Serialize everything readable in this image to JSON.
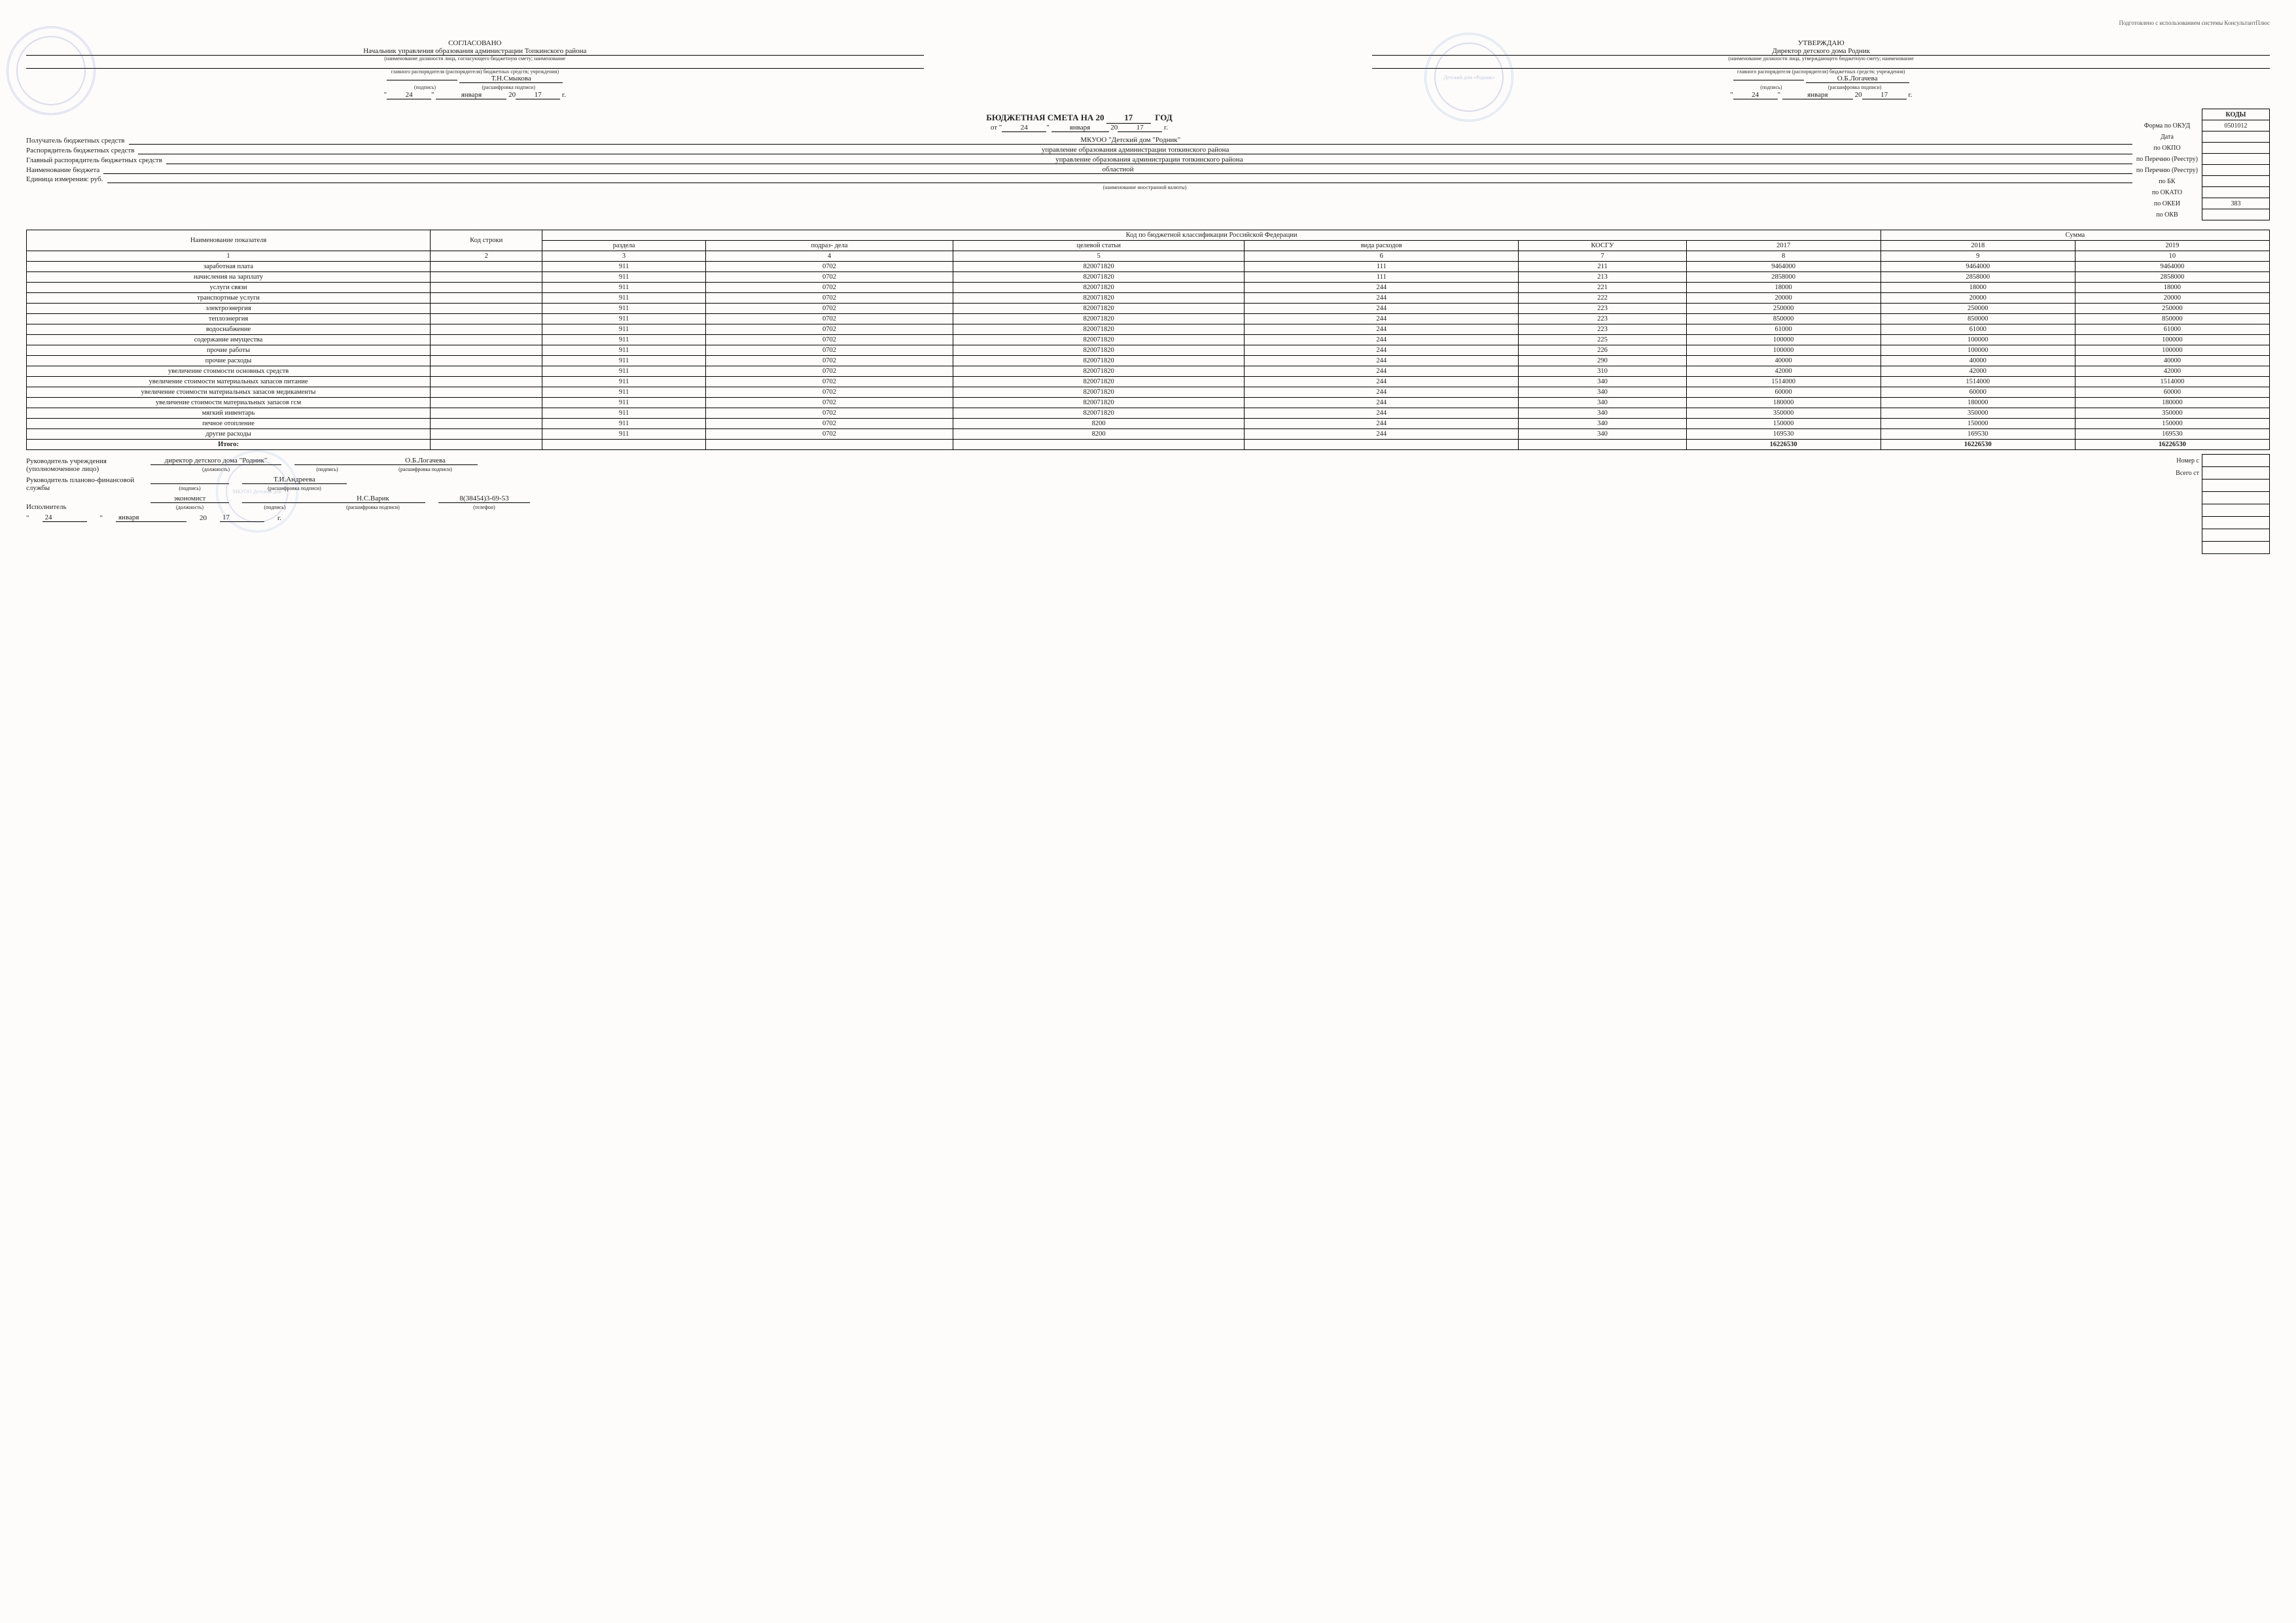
{
  "top_note": "Подготовлено с использованием системы КонсультантПлюс",
  "approval": {
    "left": {
      "heading": "СОГЛАСОВАНО",
      "position_line": "Начальник управления образования администрации Топкинского района",
      "position_caption": "(наименование должности лица, согласующего бюджетную смету; наименование",
      "org_caption": "главного распорядителя (распорядителя) бюджетных средств; учреждения)",
      "name": "Т.Н.Смыкова",
      "name_caption": "(расшифровка подписи)",
      "sig_caption": "(подпись)",
      "day": "24",
      "month": "января",
      "yy": "17",
      "year_prefix": "20",
      "year_suffix": "г."
    },
    "right": {
      "heading": "УТВЕРЖДАЮ",
      "position_line": "Директор детского дома Родник",
      "position_caption": "(наименование должности лица, утверждающего бюджетную смету; наименование",
      "org_caption": "главного распорядителя (распорядителя) бюджетных средств; учреждения)",
      "name": "О.Б.Логачева",
      "name_caption": "(расшифровка подписи)",
      "sig_caption": "(подпись)",
      "day": "24",
      "month": "января",
      "yy": "17",
      "year_prefix": "20",
      "year_suffix": "г.",
      "stamp_text": "Детский дом «Родник»"
    }
  },
  "title": {
    "main": "БЮДЖЕТНАЯ СМЕТА НА 20",
    "yy": "17",
    "suffix": "ГОД",
    "from": "от \"",
    "day": "24",
    "quote": "\"",
    "month": "января",
    "yp": "20",
    "yy2": "17",
    "ys": "г."
  },
  "codes": {
    "header": "КОДЫ",
    "rows": [
      {
        "label": "Форма по ОКУД",
        "value": "0501012"
      },
      {
        "label": "Дата",
        "value": ""
      },
      {
        "label": "по ОКПО",
        "value": ""
      },
      {
        "label": "по Перечню (Реестру)",
        "value": ""
      },
      {
        "label": "по Перечню (Реестру)",
        "value": ""
      },
      {
        "label": "по БК",
        "value": ""
      },
      {
        "label": "по ОКАТО",
        "value": ""
      },
      {
        "label": "по ОКЕИ",
        "value": "383"
      },
      {
        "label": "по ОКВ",
        "value": ""
      }
    ]
  },
  "info": {
    "rows": [
      {
        "label": "Получатель бюджетных средств",
        "value": "МКУОО \"Детский дом \"Родник\""
      },
      {
        "label": "Распорядитель бюджетных средств",
        "value": "управление образования администрации топкинского района"
      },
      {
        "label": "Главный распорядитель бюджетных средств",
        "value": "управление образования администрации топкинского района"
      },
      {
        "label": "Наименование бюджета",
        "value": "областной"
      },
      {
        "label": "Единица измерения: руб.",
        "value": ""
      }
    ],
    "currency_caption": "(наименование иностранной валюты)"
  },
  "table": {
    "headers": {
      "h1": "Наименование показателя",
      "h2": "Код строки",
      "h3": "Код по бюджетной классификации Российской Федерации",
      "h4": "Сумма",
      "sub": [
        "раздела",
        "подраз-\nдела",
        "целевой статьи",
        "вида расходов",
        "КОСГУ",
        "2017",
        "2018",
        "2019"
      ],
      "nums": [
        "1",
        "2",
        "3",
        "4",
        "5",
        "6",
        "7",
        "8",
        "9",
        "10"
      ]
    },
    "rows": [
      {
        "c": [
          "заработная плата",
          "",
          "911",
          "0702",
          "820071820",
          "111",
          "211",
          "9464000",
          "9464000",
          "9464000"
        ]
      },
      {
        "c": [
          "начисления на зарплату",
          "",
          "911",
          "0702",
          "820071820",
          "111",
          "213",
          "2858000",
          "2858000",
          "2858000"
        ]
      },
      {
        "c": [
          "услуги связи",
          "",
          "911",
          "0702",
          "820071820",
          "244",
          "221",
          "18000",
          "18000",
          "18000"
        ]
      },
      {
        "c": [
          "транспортные услуги",
          "",
          "911",
          "0702",
          "820071820",
          "244",
          "222",
          "20000",
          "20000",
          "20000"
        ]
      },
      {
        "c": [
          "электроэнергия",
          "",
          "911",
          "0702",
          "820071820",
          "244",
          "223",
          "250000",
          "250000",
          "250000"
        ]
      },
      {
        "c": [
          "теплоэнергия",
          "",
          "911",
          "0702",
          "820071820",
          "244",
          "223",
          "850000",
          "850000",
          "850000"
        ]
      },
      {
        "c": [
          "водоснабжение",
          "",
          "911",
          "0702",
          "820071820",
          "244",
          "223",
          "61000",
          "61000",
          "61000"
        ]
      },
      {
        "c": [
          "содержание имущества",
          "",
          "911",
          "0702",
          "820071820",
          "244",
          "225",
          "100000",
          "100000",
          "100000"
        ]
      },
      {
        "c": [
          "прочие работы",
          "",
          "911",
          "0702",
          "820071820",
          "244",
          "226",
          "100000",
          "100000",
          "100000"
        ]
      },
      {
        "c": [
          "прочие расходы",
          "",
          "911",
          "0702",
          "820071820",
          "244",
          "290",
          "40000",
          "40000",
          "40000"
        ]
      },
      {
        "c": [
          "увеличение стоимости основных средств",
          "",
          "911",
          "0702",
          "820071820",
          "244",
          "310",
          "42000",
          "42000",
          "42000"
        ]
      },
      {
        "c": [
          "увеличение стоимости материальных запасов питание",
          "",
          "911",
          "0702",
          "820071820",
          "244",
          "340",
          "1514000",
          "1514000",
          "1514000"
        ]
      },
      {
        "c": [
          "увеличение стоимости материальных запасов медикаменты",
          "",
          "911",
          "0702",
          "820071820",
          "244",
          "340",
          "60000",
          "60000",
          "60000"
        ]
      },
      {
        "c": [
          "увеличение стоимости материальных запасов гсм",
          "",
          "911",
          "0702",
          "820071820",
          "244",
          "340",
          "180000",
          "180000",
          "180000"
        ]
      },
      {
        "c": [
          "мягкий инвентарь",
          "",
          "911",
          "0702",
          "820071820",
          "244",
          "340",
          "350000",
          "350000",
          "350000"
        ]
      },
      {
        "c": [
          "печное отопление",
          "",
          "911",
          "0702",
          "8200",
          "244",
          "340",
          "150000",
          "150000",
          "150000"
        ]
      },
      {
        "c": [
          "другие расходы",
          "",
          "911",
          "0702",
          "8200",
          "244",
          "340",
          "169530",
          "169530",
          "169530"
        ]
      },
      {
        "c": [
          "Итого:",
          "",
          "",
          "",
          "",
          "",
          "",
          "16226530",
          "16226530",
          "16226530"
        ],
        "bold": true
      }
    ]
  },
  "footer": {
    "head_label": "Руководитель учреждения (уполномоченное лицо)",
    "head_pos": "директор детского дома \"Родник\"",
    "head_pos_cap": "(должность)",
    "head_sig_cap": "(подпись)",
    "head_name": "О.Б.Логачева",
    "head_name_cap": "(расшифровка подписи)",
    "fin_label": "Руководитель планово-финансовой службы",
    "fin_sig_cap": "(подпись)",
    "fin_name": "Т.И.Андреева",
    "fin_name_cap": "(расшифровка подписи)",
    "exec_label": "Исполнитель",
    "exec_pos": "экономист",
    "exec_pos_cap": "(должность)",
    "exec_sig_cap": "(подпись)",
    "exec_name": "Н.С.Варик",
    "exec_name_cap": "(расшифровка подписи)",
    "exec_tel": "8(38454)3-69-53",
    "exec_tel_cap": "(телефон)",
    "date_day": "24",
    "date_month": "января",
    "date_yp": "20",
    "date_yy": "17",
    "date_ys": "г.",
    "side": [
      {
        "label": "Номер с",
        "value": ""
      },
      {
        "label": "Всего ст",
        "value": ""
      }
    ],
    "side_extra_rows": 6
  }
}
